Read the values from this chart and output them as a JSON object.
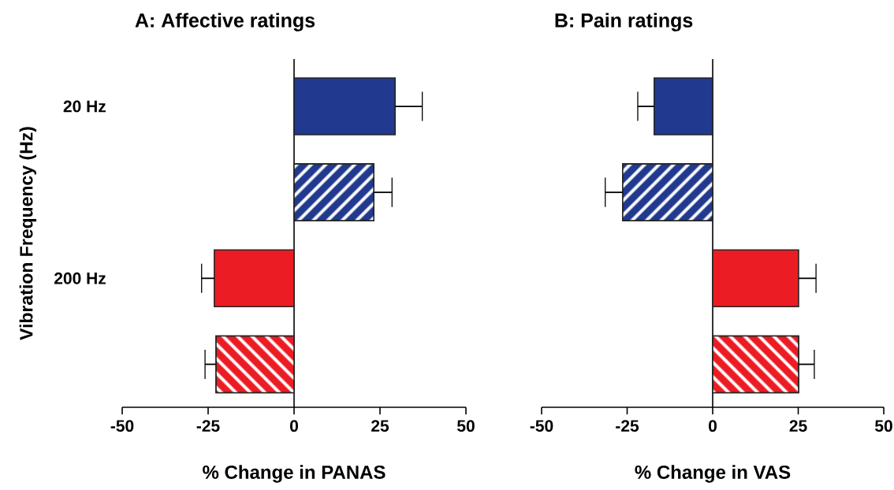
{
  "chart_data": [
    {
      "type": "bar",
      "orientation": "horizontal",
      "title": "A: Affective ratings",
      "xlabel": "% Change in PANAS",
      "ylabel": "Vibration Frequency (Hz)",
      "categories": [
        "20 Hz",
        null,
        "200 Hz",
        null
      ],
      "xlim": [
        -50,
        50
      ],
      "xticks": [
        -50,
        -25,
        0,
        25,
        50
      ],
      "series": [
        {
          "colors": [
            "#213a8f",
            null,
            "#ec1c24",
            null
          ],
          "values": [
            29.4,
            null,
            -23.2,
            null
          ],
          "errors": [
            [
              29.4,
              37.3
            ],
            null,
            [
              -26.9,
              -23.2
            ],
            null
          ]
        },
        {
          "colors": [
            null,
            "#213a8f",
            null,
            "#ec1c24"
          ],
          "values": [
            null,
            23.2,
            null,
            -22.7
          ],
          "errors": [
            null,
            [
              23.2,
              28.5
            ],
            null,
            [
              -25.9,
              -22.7
            ]
          ]
        }
      ]
    },
    {
      "type": "bar",
      "orientation": "horizontal",
      "title": "B: Pain ratings",
      "xlabel": "% Change in VAS",
      "categories": [
        null,
        null,
        null,
        null
      ],
      "xlim": [
        -50,
        50
      ],
      "xticks": [
        -50,
        -25,
        0,
        25,
        50
      ],
      "series": [
        {
          "colors": [
            "#213a8f",
            null,
            "#ec1c24",
            null
          ],
          "values": [
            -17.1,
            null,
            25.1,
            null
          ],
          "errors": [
            [
              -21.9,
              -17.1
            ],
            null,
            [
              25.1,
              30.2
            ],
            null
          ]
        },
        {
          "colors": [
            null,
            "#213a8f",
            null,
            "#ec1c24"
          ],
          "values": [
            null,
            -26.3,
            null,
            25.1
          ],
          "errors": [
            null,
            [
              -31.4,
              -26.3
            ],
            null,
            [
              25.1,
              29.7
            ]
          ]
        }
      ]
    }
  ]
}
